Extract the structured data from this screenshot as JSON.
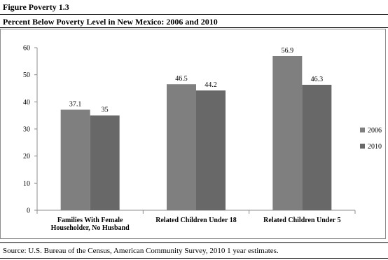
{
  "header": {
    "figure_label": "Figure Poverty 1.3",
    "title": "Percent Below Poverty Level in New Mexico: 2006 and 2010"
  },
  "footer": {
    "source": "Source: U.S. Bureau of the Census, American Community Survey, 2010 1 year estimates."
  },
  "chart_data": {
    "type": "bar",
    "title": "",
    "xlabel": "",
    "ylabel": "",
    "ylim": [
      0,
      60
    ],
    "yticks": [
      0,
      10,
      20,
      30,
      40,
      50,
      60
    ],
    "grid": false,
    "legend_position": "right",
    "categories": [
      [
        "Families With Female",
        "Householder, No Husband"
      ],
      [
        "Related Children Under 18"
      ],
      [
        "Related Children Under 5"
      ]
    ],
    "series": [
      {
        "name": "2006",
        "color": "#7f7f7f",
        "values": [
          37.1,
          46.5,
          56.9
        ],
        "labels": [
          "37.1",
          "46.5",
          "56.9"
        ]
      },
      {
        "name": "2010",
        "color": "#686868",
        "values": [
          35,
          44.2,
          46.3
        ],
        "labels": [
          "35",
          "44.2",
          "46.3"
        ]
      }
    ]
  }
}
